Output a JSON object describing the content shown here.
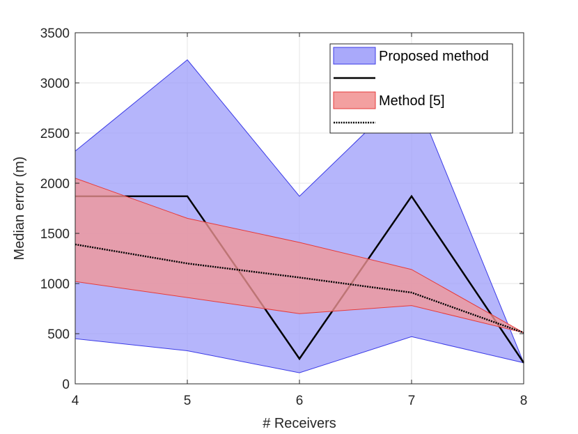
{
  "chart_data": {
    "type": "area",
    "xlabel": "# Receivers",
    "ylabel": "Median error (m)",
    "xlim": [
      4,
      8
    ],
    "ylim": [
      0,
      3500
    ],
    "xticks": [
      "4",
      "5",
      "6",
      "7",
      "8"
    ],
    "yticks": [
      "0",
      "500",
      "1000",
      "1500",
      "2000",
      "2500",
      "3000",
      "3500"
    ],
    "grid": true,
    "legend_position": "top-right",
    "x": [
      4,
      5,
      6,
      7,
      8
    ],
    "series": [
      {
        "name": "Proposed method",
        "kind": "band",
        "color": "#a0a0fa",
        "edge_color": "#3a3ae6",
        "lower": [
          450,
          330,
          110,
          470,
          210
        ],
        "upper": [
          2320,
          3230,
          1870,
          2950,
          210
        ]
      },
      {
        "name": "",
        "kind": "line",
        "color": "#000000",
        "style": "solid",
        "values": [
          1870,
          1870,
          250,
          1870,
          210
        ]
      },
      {
        "name": "Method [5]",
        "kind": "band",
        "color": "#f29696",
        "edge_color": "#e63a3a",
        "lower": [
          1020,
          860,
          700,
          780,
          510
        ],
        "upper": [
          2050,
          1650,
          1410,
          1140,
          510
        ]
      },
      {
        "name": "",
        "kind": "line",
        "color": "#000000",
        "style": "dotted",
        "values": [
          1390,
          1200,
          1060,
          910,
          510
        ]
      }
    ]
  }
}
